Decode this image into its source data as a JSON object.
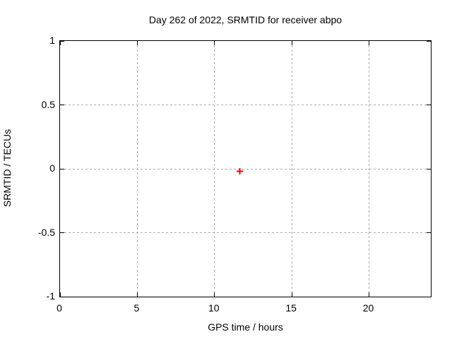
{
  "chart_data": {
    "type": "scatter",
    "title": "Day 262 of 2022, SRMTID for receiver abpo",
    "xlabel": "GPS time / hours",
    "ylabel": "SRMTID / TECUs",
    "xlim": [
      0,
      24
    ],
    "ylim": [
      -1,
      1
    ],
    "x_ticks": [
      0,
      5,
      10,
      15,
      20
    ],
    "y_ticks": [
      -1,
      -0.5,
      0,
      0.5,
      1
    ],
    "grid": true,
    "legend": "none",
    "series": [
      {
        "name": "SRMTID",
        "marker": "plus",
        "color": "#ff0000",
        "points": [
          {
            "x": 11.68,
            "y": 0
          }
        ]
      }
    ]
  },
  "colors": {
    "marker": "#ff0000",
    "grid": "#a9a9a9",
    "border": "#000000",
    "text": "#000000",
    "background": "#ffffff"
  }
}
